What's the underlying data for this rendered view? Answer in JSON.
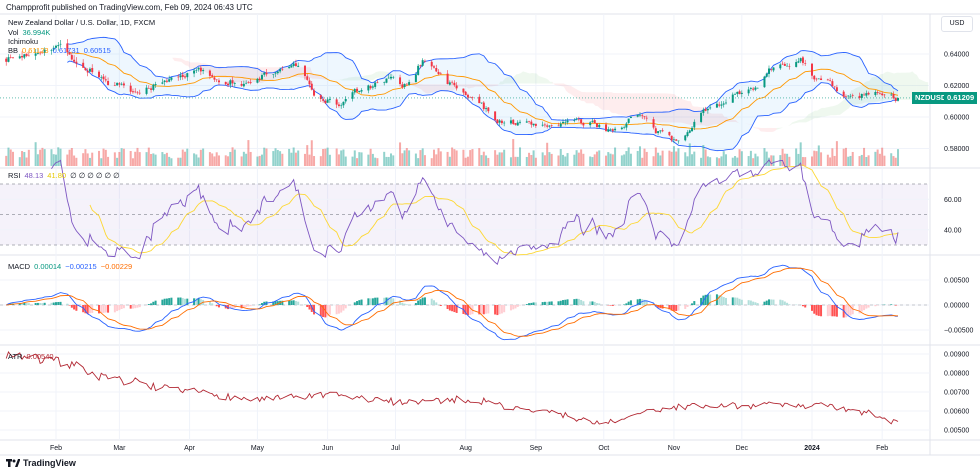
{
  "header": {
    "published": "Champprofit published on TradingView.com, Feb 09, 2024 06:43 UTC"
  },
  "legend": {
    "symbol": "New Zealand Dollar / U.S. Dollar, 1D, FXCM",
    "vol_label": "Vol",
    "vol_value": "36.994K",
    "ichimoku_label": "Ichimoku",
    "bb_label": "BB",
    "bb_values": [
      "0.61123",
      "0.61731",
      "0.60515"
    ],
    "rsi_label": "RSI",
    "rsi_value": "48.13",
    "rsi_ma": "41.80",
    "rsi_extra": "∅ ∅ ∅ ∅ ∅ ∅",
    "macd_label": "MACD",
    "macd_values": [
      "0.00014",
      "−0.00215",
      "−0.00229"
    ],
    "atr_label": "ATR",
    "atr_value": "0.00540"
  },
  "currency_button": "USD",
  "price_badge": {
    "symbol": "NZDUSD",
    "price": "0.61209"
  },
  "footer": {
    "brand": "TradingView"
  },
  "colors": {
    "up": "#089981",
    "down": "#f23645",
    "bb_band": "#2962ff",
    "bb_basis": "#ff9800",
    "rsi": "#7e57c2",
    "rsi_ma": "#fdd835",
    "macd": "#2962ff",
    "signal": "#ff6d00",
    "atr": "#b22833"
  },
  "chart_data": {
    "type": "candlestick",
    "title": "New Zealand Dollar / U.S. Dollar, 1D, FXCM",
    "x_ticks": [
      "Feb",
      "Mar",
      "Apr",
      "May",
      "Jun",
      "Jul",
      "Aug",
      "Sep",
      "Oct",
      "Nov",
      "Dec",
      "2024",
      "Feb"
    ],
    "price_axis": {
      "ticks": [
        "0.64000",
        "0.62000",
        "0.60000",
        "0.58000"
      ],
      "range": [
        0.567,
        0.648
      ]
    },
    "rsi_axis": {
      "ticks": [
        "60.00",
        "40.00"
      ],
      "bands": [
        70,
        50,
        30
      ]
    },
    "macd_axis": {
      "ticks": [
        "0.00500",
        "0.00000",
        "−0.00500"
      ]
    },
    "atr_axis": {
      "ticks": [
        "0.00900",
        "0.00800",
        "0.00700",
        "0.00600",
        "0.00500"
      ]
    },
    "close_approx": [
      [
        "2023-01-10",
        0.637
      ],
      [
        "2023-02-02",
        0.645
      ],
      [
        "2023-02-15",
        0.63
      ],
      [
        "2023-02-27",
        0.62
      ],
      [
        "2023-03-08",
        0.614
      ],
      [
        "2023-03-17",
        0.62
      ],
      [
        "2023-03-29",
        0.627
      ],
      [
        "2023-04-05",
        0.629
      ],
      [
        "2023-04-17",
        0.623
      ],
      [
        "2023-04-27",
        0.62
      ],
      [
        "2023-05-05",
        0.627
      ],
      [
        "2023-05-16",
        0.633
      ],
      [
        "2023-05-30",
        0.611
      ],
      [
        "2023-06-06",
        0.608
      ],
      [
        "2023-06-15",
        0.617
      ],
      [
        "2023-06-28",
        0.623
      ],
      [
        "2023-07-06",
        0.62
      ],
      [
        "2023-07-14",
        0.636
      ],
      [
        "2023-07-27",
        0.62
      ],
      [
        "2023-08-04",
        0.611
      ],
      [
        "2023-08-16",
        0.598
      ],
      [
        "2023-08-28",
        0.595
      ],
      [
        "2023-09-06",
        0.595
      ],
      [
        "2023-09-15",
        0.597
      ],
      [
        "2023-09-27",
        0.595
      ],
      [
        "2023-10-05",
        0.592
      ],
      [
        "2023-10-16",
        0.601
      ],
      [
        "2023-10-26",
        0.589
      ],
      [
        "2023-11-01",
        0.585
      ],
      [
        "2023-11-15",
        0.604
      ],
      [
        "2023-11-28",
        0.614
      ],
      [
        "2023-12-06",
        0.62
      ],
      [
        "2023-12-15",
        0.63
      ],
      [
        "2023-12-27",
        0.636
      ],
      [
        "2024-01-05",
        0.623
      ],
      [
        "2024-01-17",
        0.612
      ],
      [
        "2024-01-26",
        0.614
      ],
      [
        "2024-02-08",
        0.61209
      ]
    ],
    "atr_approx": [
      [
        "2023-01-10",
        0.009
      ],
      [
        "2023-02-01",
        0.0086
      ],
      [
        "2023-03-01",
        0.0076
      ],
      [
        "2023-04-01",
        0.007
      ],
      [
        "2023-05-01",
        0.0066
      ],
      [
        "2023-06-01",
        0.0068
      ],
      [
        "2023-07-01",
        0.0065
      ],
      [
        "2023-08-01",
        0.0066
      ],
      [
        "2023-09-01",
        0.006
      ],
      [
        "2023-10-01",
        0.0054
      ],
      [
        "2023-11-01",
        0.0062
      ],
      [
        "2023-12-01",
        0.0063
      ],
      [
        "2024-01-01",
        0.0063
      ],
      [
        "2024-01-25",
        0.0059
      ],
      [
        "2024-02-08",
        0.0054
      ]
    ]
  }
}
